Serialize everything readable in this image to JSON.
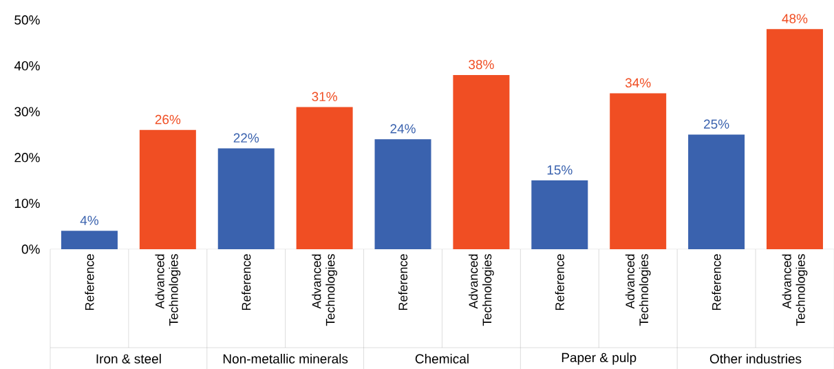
{
  "chart_data": {
    "type": "bar",
    "categories": [
      "Reference",
      "Advanced Technologies",
      "Reference",
      "Advanced Technologies",
      "Reference",
      "Advanced Technologies",
      "Reference",
      "Advanced Technologies",
      "Reference",
      "Advanced Technologies"
    ],
    "values": [
      4,
      26,
      22,
      31,
      24,
      38,
      15,
      34,
      25,
      48
    ],
    "colors": [
      "#3a62ae",
      "#f04e23",
      "#3a62ae",
      "#f04e23",
      "#3a62ae",
      "#f04e23",
      "#3a62ae",
      "#f04e23",
      "#3a62ae",
      "#f04e23"
    ],
    "value_labels": [
      "4%",
      "26%",
      "22%",
      "31%",
      "24%",
      "38%",
      "15%",
      "34%",
      "25%",
      "48%"
    ],
    "ylim": [
      0,
      50
    ],
    "yticks": [
      {
        "value": 0,
        "label": "0%"
      },
      {
        "value": 10,
        "label": "10%"
      },
      {
        "value": 20,
        "label": "20%"
      },
      {
        "value": 30,
        "label": "30%"
      },
      {
        "value": 40,
        "label": "40%"
      },
      {
        "value": 50,
        "label": "50%"
      }
    ],
    "annotations": [
      "Iron & steel",
      "Non-metallic minerals",
      "Chemical",
      "Paper & pulp",
      "Other industries"
    ]
  }
}
